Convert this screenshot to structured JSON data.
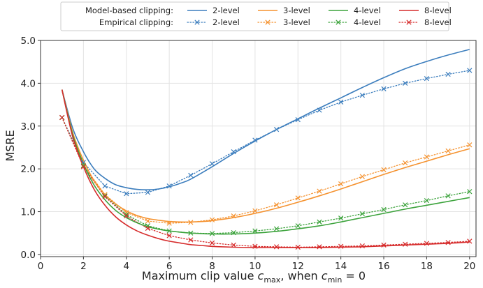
{
  "chart_data": {
    "type": "line",
    "title": "",
    "xlabel_prefix": "Maximum clip value ",
    "xlabel_c": "c",
    "xlabel_max_sub": "max",
    "xlabel_mid": ", when ",
    "xlabel_min_sub": "min",
    "xlabel_suffix": " = 0",
    "ylabel": "MSRE",
    "xlim": [
      0,
      20.3
    ],
    "ylim": [
      -0.05,
      5.0
    ],
    "xticks": [
      0,
      2,
      4,
      6,
      8,
      10,
      12,
      14,
      16,
      18,
      20
    ],
    "xtick_labels": [
      "0",
      "2",
      "4",
      "6",
      "8",
      "10",
      "12",
      "14",
      "16",
      "18",
      "20"
    ],
    "yticks": [
      0.0,
      1.0,
      2.0,
      3.0,
      4.0,
      5.0
    ],
    "ytick_labels": [
      "0.0",
      "1.0",
      "2.0",
      "3.0",
      "4.0",
      "5.0"
    ],
    "grid": true,
    "legend_placement": "top",
    "legend": {
      "row_labels": [
        "Model-based clipping:",
        "Empirical clipping:"
      ],
      "levels": [
        "2-level",
        "3-level",
        "4-level",
        "8-level"
      ]
    },
    "colors": {
      "2-level": "#3b7dbd",
      "3-level": "#f5922f",
      "4-level": "#3ca33c",
      "8-level": "#d62b2b"
    },
    "model_series": [
      {
        "name": "2-level",
        "x": [
          1.0,
          1.5,
          2.0,
          2.5,
          3.0,
          3.5,
          4.0,
          4.5,
          5.0,
          5.5,
          6.0,
          6.5,
          7.0,
          8.0,
          9.0,
          10.0,
          11.0,
          12.0,
          13.0,
          14.0,
          15.0,
          16.0,
          17.0,
          18.0,
          19.0,
          20.0
        ],
        "y": [
          3.85,
          2.95,
          2.4,
          2.0,
          1.78,
          1.63,
          1.56,
          1.52,
          1.51,
          1.53,
          1.58,
          1.66,
          1.76,
          2.05,
          2.36,
          2.65,
          2.92,
          3.17,
          3.42,
          3.66,
          3.9,
          4.13,
          4.34,
          4.51,
          4.66,
          4.79
        ]
      },
      {
        "name": "3-level",
        "x": [
          1.0,
          1.5,
          2.0,
          2.5,
          3.0,
          3.5,
          4.0,
          4.5,
          5.0,
          5.5,
          6.0,
          6.5,
          7.0,
          7.5,
          8.0,
          9.0,
          10.0,
          11.0,
          12.0,
          13.0,
          14.0,
          15.0,
          16.0,
          17.0,
          18.0,
          19.0,
          20.0
        ],
        "y": [
          3.85,
          2.85,
          2.2,
          1.72,
          1.4,
          1.18,
          1.02,
          0.91,
          0.84,
          0.8,
          0.77,
          0.76,
          0.76,
          0.77,
          0.79,
          0.86,
          0.96,
          1.08,
          1.22,
          1.37,
          1.53,
          1.7,
          1.87,
          2.03,
          2.18,
          2.33,
          2.47
        ]
      },
      {
        "name": "4-level",
        "x": [
          1.0,
          1.5,
          2.0,
          2.5,
          3.0,
          3.5,
          4.0,
          4.5,
          5.0,
          5.5,
          6.0,
          7.0,
          8.0,
          9.0,
          10.0,
          11.0,
          12.0,
          13.0,
          14.0,
          15.0,
          16.0,
          17.0,
          18.0,
          19.0,
          20.0
        ],
        "y": [
          3.85,
          2.8,
          2.12,
          1.62,
          1.28,
          1.03,
          0.86,
          0.74,
          0.65,
          0.59,
          0.55,
          0.5,
          0.48,
          0.48,
          0.5,
          0.54,
          0.6,
          0.67,
          0.76,
          0.86,
          0.96,
          1.06,
          1.15,
          1.24,
          1.33
        ]
      },
      {
        "name": "8-level",
        "x": [
          1.0,
          1.5,
          2.0,
          2.5,
          3.0,
          3.5,
          4.0,
          4.5,
          5.0,
          5.5,
          6.0,
          6.5,
          7.0,
          7.5,
          8.0,
          9.0,
          10.0,
          11.0,
          12.0,
          13.0,
          14.0,
          15.0,
          16.0,
          17.0,
          18.0,
          19.0,
          20.0
        ],
        "y": [
          3.85,
          2.75,
          2.05,
          1.52,
          1.15,
          0.88,
          0.69,
          0.55,
          0.45,
          0.37,
          0.31,
          0.27,
          0.23,
          0.21,
          0.19,
          0.17,
          0.16,
          0.16,
          0.16,
          0.16,
          0.17,
          0.18,
          0.2,
          0.22,
          0.24,
          0.26,
          0.29
        ]
      }
    ],
    "empirical_series": [
      {
        "name": "2-level",
        "x": [
          1,
          2,
          3,
          4,
          5,
          6,
          7,
          8,
          9,
          10,
          11,
          12,
          13,
          14,
          15,
          16,
          17,
          18,
          19,
          20
        ],
        "y": [
          3.2,
          2.15,
          1.6,
          1.42,
          1.45,
          1.6,
          1.85,
          2.12,
          2.4,
          2.67,
          2.92,
          3.15,
          3.37,
          3.56,
          3.72,
          3.87,
          4.0,
          4.11,
          4.21,
          4.3
        ]
      },
      {
        "name": "3-level",
        "x": [
          1,
          2,
          3,
          4,
          5,
          6,
          7,
          8,
          9,
          10,
          11,
          12,
          13,
          14,
          15,
          16,
          17,
          18,
          19,
          20
        ],
        "y": [
          3.2,
          2.08,
          1.4,
          0.98,
          0.78,
          0.73,
          0.75,
          0.81,
          0.9,
          1.02,
          1.16,
          1.32,
          1.48,
          1.65,
          1.82,
          1.98,
          2.14,
          2.28,
          2.42,
          2.56
        ]
      },
      {
        "name": "4-level",
        "x": [
          1,
          2,
          3,
          4,
          5,
          6,
          7,
          8,
          9,
          10,
          11,
          12,
          13,
          14,
          15,
          16,
          17,
          18,
          19,
          20
        ],
        "y": [
          3.2,
          2.07,
          1.37,
          0.93,
          0.67,
          0.55,
          0.5,
          0.49,
          0.51,
          0.55,
          0.6,
          0.67,
          0.76,
          0.85,
          0.95,
          1.05,
          1.16,
          1.26,
          1.37,
          1.47
        ]
      },
      {
        "name": "8-level",
        "x": [
          1,
          2,
          3,
          4,
          5,
          6,
          7,
          8,
          9,
          10,
          11,
          12,
          13,
          14,
          15,
          16,
          17,
          18,
          19,
          20
        ],
        "y": [
          3.2,
          2.05,
          1.35,
          0.9,
          0.61,
          0.44,
          0.34,
          0.27,
          0.22,
          0.19,
          0.18,
          0.17,
          0.18,
          0.19,
          0.2,
          0.22,
          0.24,
          0.26,
          0.28,
          0.31
        ]
      }
    ]
  }
}
